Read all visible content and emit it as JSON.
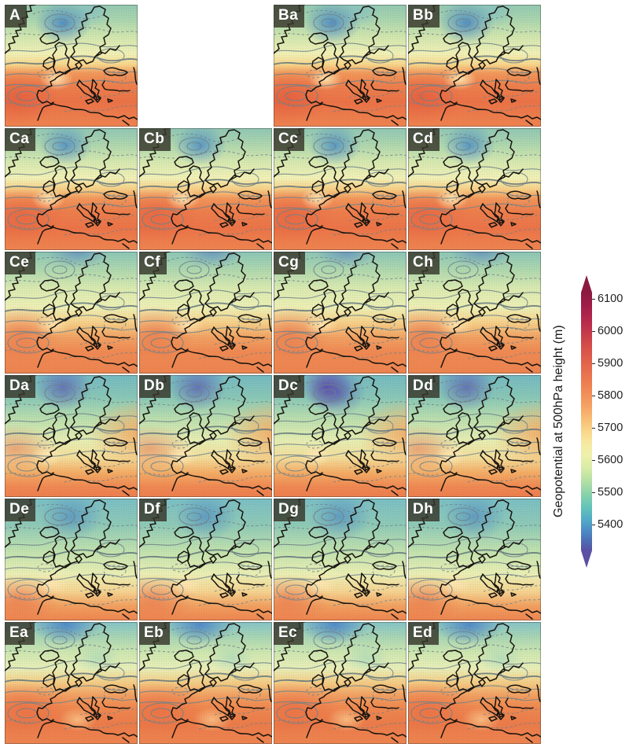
{
  "panels": [
    {
      "label": "A",
      "row": 1,
      "col": 1,
      "group": "r1"
    },
    {
      "label": "Ba",
      "row": 1,
      "col": 3,
      "group": "r1"
    },
    {
      "label": "Bb",
      "row": 1,
      "col": 4,
      "group": "r1"
    },
    {
      "label": "Ca",
      "row": 2,
      "col": 1,
      "group": "r2"
    },
    {
      "label": "Cb",
      "row": 2,
      "col": 2,
      "group": "r2"
    },
    {
      "label": "Cc",
      "row": 2,
      "col": 3,
      "group": "r2"
    },
    {
      "label": "Cd",
      "row": 2,
      "col": 4,
      "group": "r2"
    },
    {
      "label": "Ce",
      "row": 3,
      "col": 1,
      "group": "r3"
    },
    {
      "label": "Cf",
      "row": 3,
      "col": 2,
      "group": "r3"
    },
    {
      "label": "Cg",
      "row": 3,
      "col": 3,
      "group": "r3"
    },
    {
      "label": "Ch",
      "row": 3,
      "col": 4,
      "group": "r3"
    },
    {
      "label": "Da",
      "row": 4,
      "col": 1,
      "group": "r4"
    },
    {
      "label": "Db",
      "row": 4,
      "col": 2,
      "group": "r4"
    },
    {
      "label": "Dc",
      "row": 4,
      "col": 3,
      "group": "r4",
      "deep": true
    },
    {
      "label": "Dd",
      "row": 4,
      "col": 4,
      "group": "r4"
    },
    {
      "label": "De",
      "row": 5,
      "col": 1,
      "group": "r5"
    },
    {
      "label": "Df",
      "row": 5,
      "col": 2,
      "group": "r5"
    },
    {
      "label": "Dg",
      "row": 5,
      "col": 3,
      "group": "r5"
    },
    {
      "label": "Dh",
      "row": 5,
      "col": 4,
      "group": "r5"
    },
    {
      "label": "Ea",
      "row": 6,
      "col": 1,
      "group": "r6"
    },
    {
      "label": "Eb",
      "row": 6,
      "col": 2,
      "group": "r6"
    },
    {
      "label": "Ec",
      "row": 6,
      "col": 3,
      "group": "r6"
    },
    {
      "label": "Ed",
      "row": 6,
      "col": 4,
      "group": "r6"
    }
  ],
  "colorbar": {
    "title": "Geopotential at 500hPa height (m)",
    "unit": "m",
    "ticks": [
      "6100",
      "6000",
      "5900",
      "5800",
      "5700",
      "5600",
      "5500",
      "5400"
    ],
    "extend_high_color": "#8c1a40",
    "extend_low_color": "#5a50a4",
    "gradient_stops": [
      "#8c1a40 0%",
      "#a01c49 5%",
      "#b92c4b 12%",
      "#d34b4a 20%",
      "#e4664b 28%",
      "#ee8253 36%",
      "#f5a263 44%",
      "#f8c278 50%",
      "#f9dc90 55%",
      "#f6eaa4 59%",
      "#eef0ac 63%",
      "#d9eca6 68%",
      "#b4e0a4 73%",
      "#8ad2ab 78%",
      "#64c4b8 83%",
      "#52abc8 88%",
      "#4b86c3 93%",
      "#4f68b0 97%",
      "#5a50a4 100%"
    ]
  }
}
